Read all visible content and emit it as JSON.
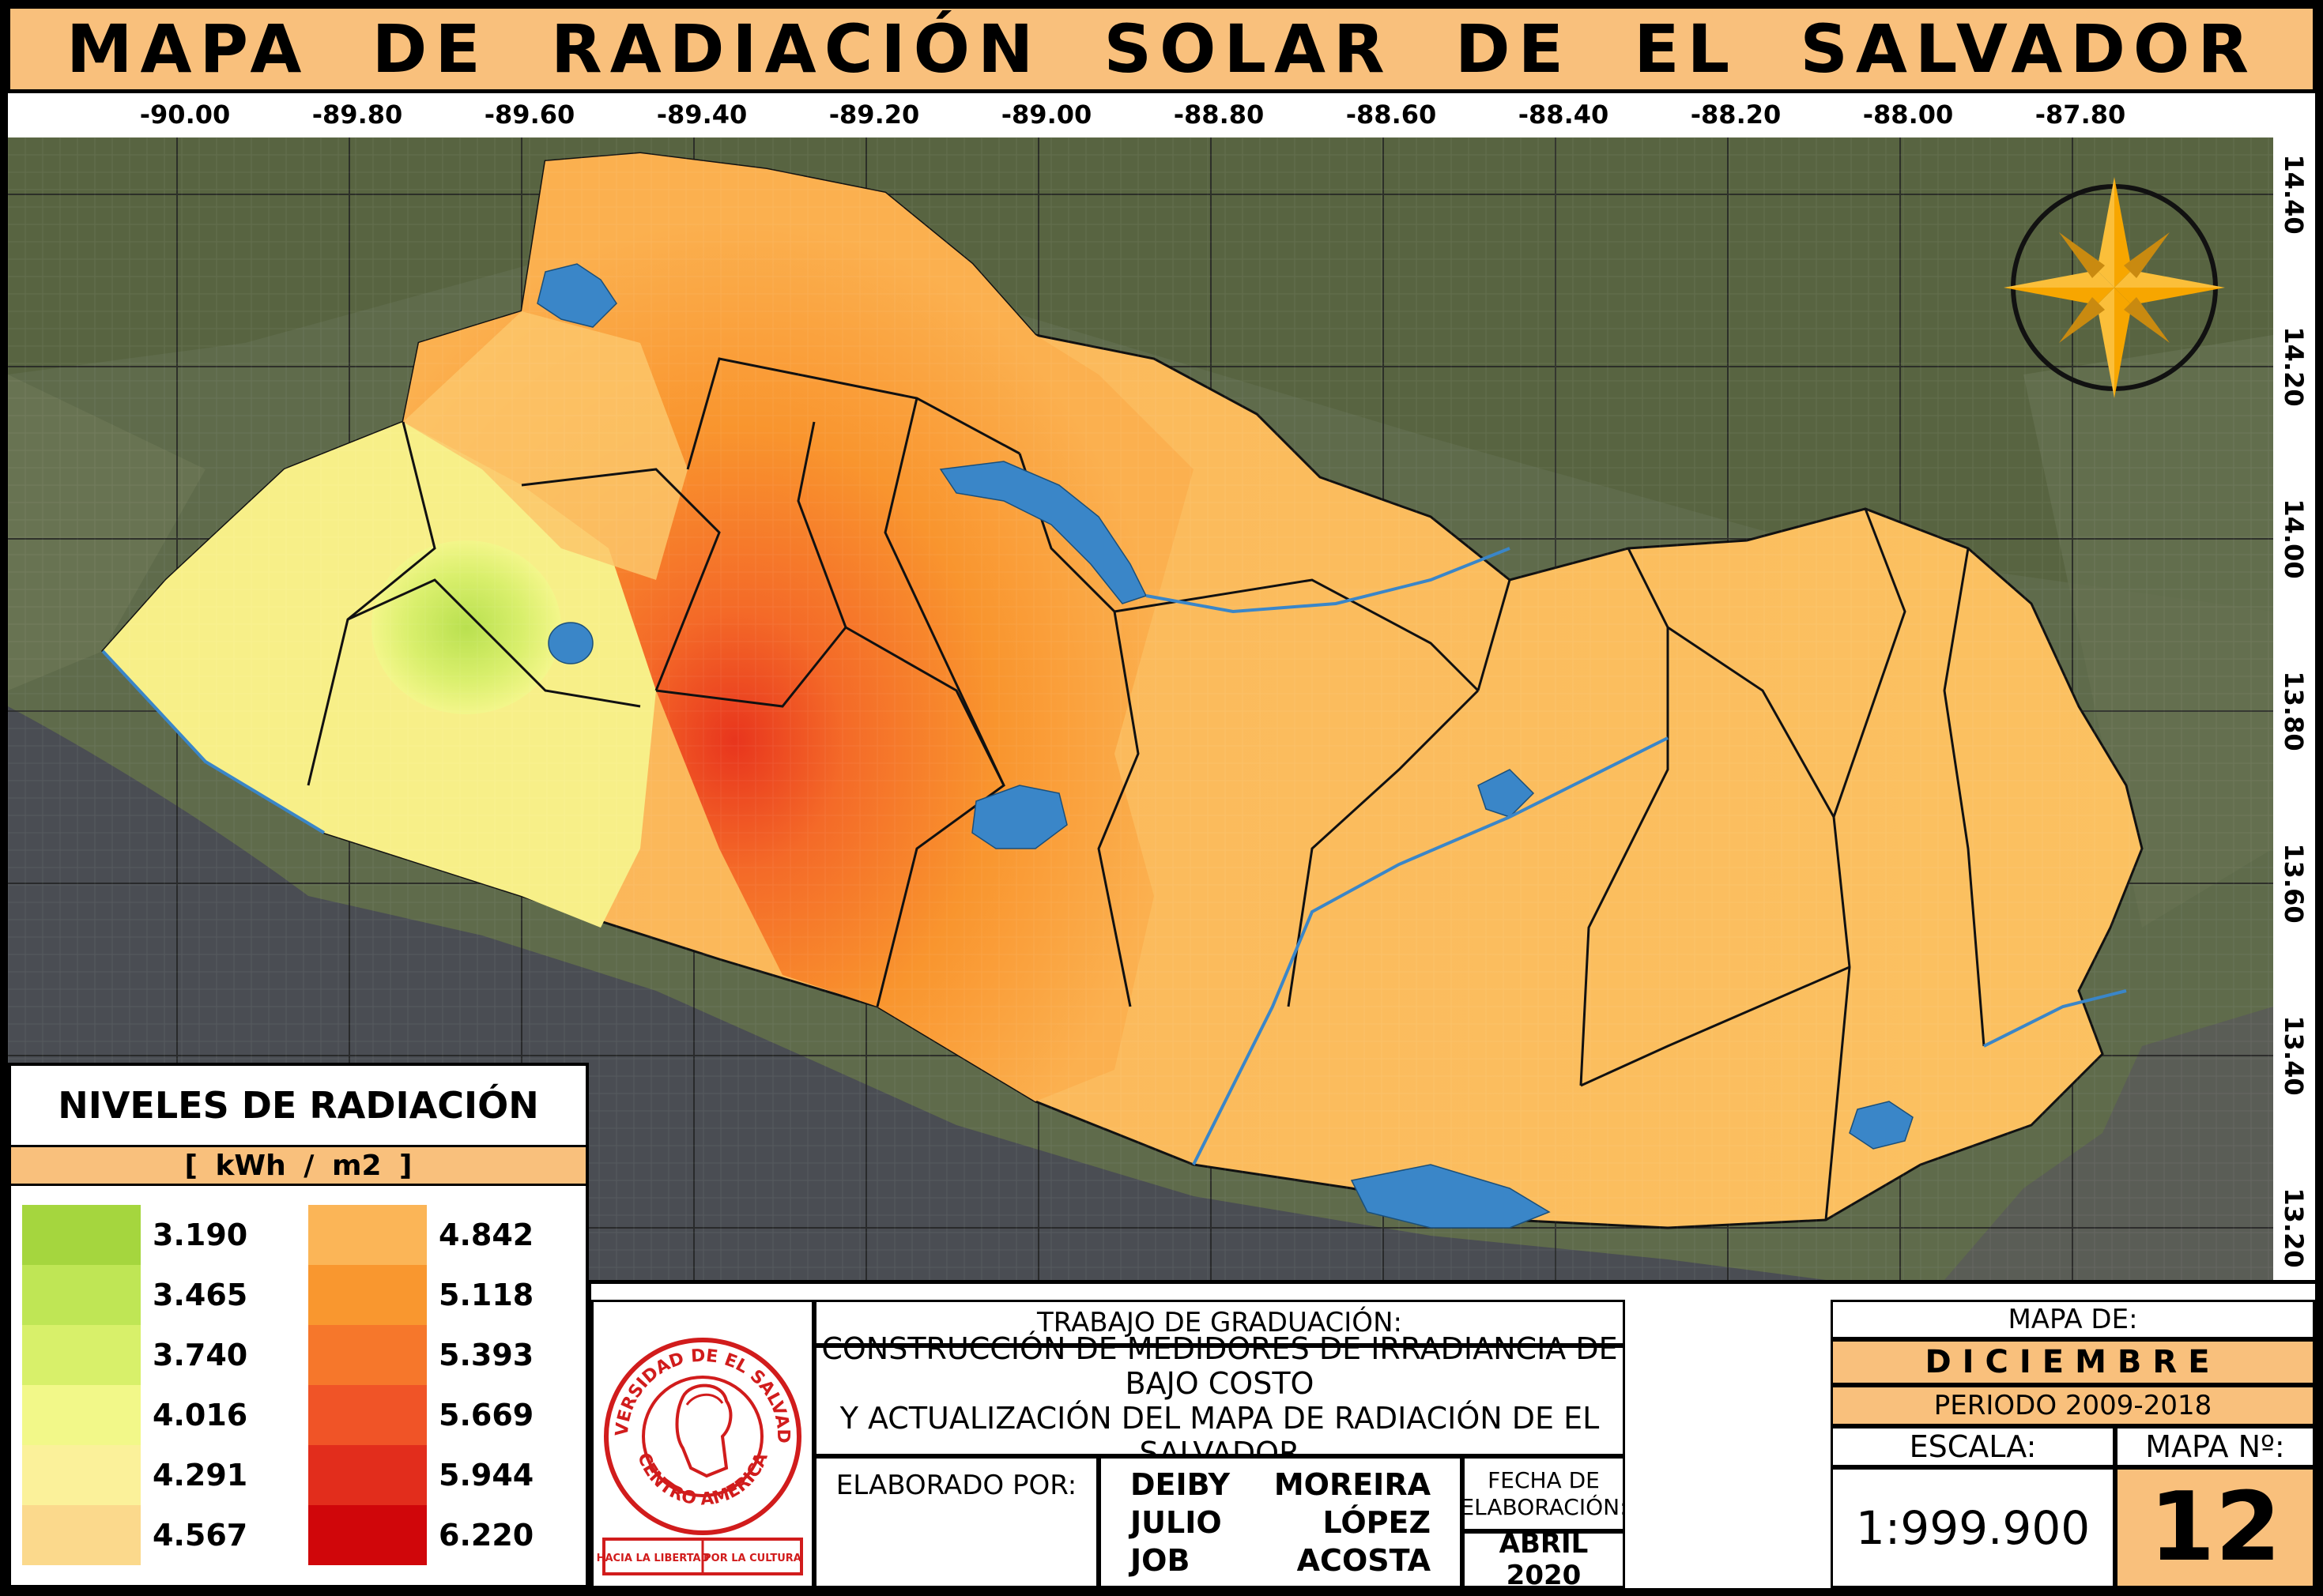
{
  "title": "MAPA DE RADIACIÓN SOLAR DE EL SALVADOR",
  "longitude_labels": [
    "-90.00",
    "-89.80",
    "-89.60",
    "-89.40",
    "-89.20",
    "-89.00",
    "-88.80",
    "-88.60",
    "-88.40",
    "-88.20",
    "-88.00",
    "-87.80"
  ],
  "latitude_labels": [
    "14.40",
    "14.20",
    "14.00",
    "13.80",
    "13.60",
    "13.40",
    "13.20"
  ],
  "legend": {
    "title": "NIVELES DE RADIACIÓN",
    "unit": "[  kWh / m2  ]",
    "levels": [
      {
        "value": "3.190",
        "color": "#a5d63e"
      },
      {
        "value": "3.465",
        "color": "#bfe655"
      },
      {
        "value": "3.740",
        "color": "#d8f06a"
      },
      {
        "value": "4.016",
        "color": "#f2f889"
      },
      {
        "value": "4.291",
        "color": "#fbf19a"
      },
      {
        "value": "4.567",
        "color": "#fbd98c"
      },
      {
        "value": "4.842",
        "color": "#fbb557"
      },
      {
        "value": "5.118",
        "color": "#f9972f"
      },
      {
        "value": "5.393",
        "color": "#f6772b"
      },
      {
        "value": "5.669",
        "color": "#f05427"
      },
      {
        "value": "5.944",
        "color": "#e22d1c"
      },
      {
        "value": "6.220",
        "color": "#d0060a"
      }
    ]
  },
  "info": {
    "trabajo_label": "TRABAJO DE GRADUACIÓN:",
    "project_line1": "CONSTRUCCIÓN DE MEDIDORES DE IRRADIANCIA DE BAJO COSTO",
    "project_line2": "Y ACTUALIZACIÓN DEL MAPA DE RADIACIÓN DE EL SALVADOR",
    "elaborado_label": "ELABORADO POR:",
    "authors": [
      {
        "first": "DEIBY",
        "last": "MOREIRA"
      },
      {
        "first": "JULIO",
        "last": "LÓPEZ"
      },
      {
        "first": "JOB",
        "last": "ACOSTA"
      }
    ],
    "fecha_label_1": "FECHA DE",
    "fecha_label_2": "ELABORACIÓN:",
    "fecha_value": "ABRIL 2020",
    "mapa_de_label": "MAPA DE:",
    "month": "DICIEMBRE",
    "periodo": "PERIODO 2009-2018",
    "escala_label": "ESCALA:",
    "escala_value": "1:999.900",
    "mapa_no_label": "MAPA Nº:",
    "mapa_no_value": "12"
  },
  "seal": {
    "ring_top": "UNIVERSIDAD DE EL SALVADOR",
    "ring_bottom": "CENTRO AMERICA",
    "banner_left": "HACIA LA LIBERTAD",
    "banner_right": "POR LA CULTURA",
    "color": "#d11c1c"
  },
  "colors": {
    "title_bg": "#f9c07c",
    "water": "#3a86c8",
    "ocean": "#4a4d53",
    "compass": "#f7a600"
  }
}
